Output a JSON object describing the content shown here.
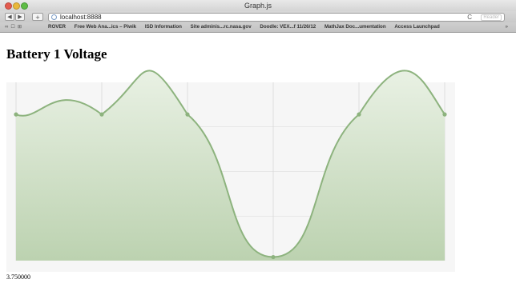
{
  "window": {
    "title": "Graph.js"
  },
  "toolbar": {
    "back_label": "◀",
    "forward_label": "▶",
    "add_label": "+",
    "url": "localhost:8888",
    "reload_label": "C",
    "reader_label": "Reader"
  },
  "bookmarks": {
    "items": [
      "ROVER",
      "Free Web Ana...ics – Piwik",
      "ISD Information",
      "Site adminis...rc.nasa.gov",
      "Doodle: VEX...f 11/26/12",
      "MathJax Doc...umentation",
      "Access Launchpad"
    ],
    "more_label": "»"
  },
  "page": {
    "heading": "Battery 1 Voltage",
    "readout": "3.750000"
  },
  "colors": {
    "line": "#8db37e",
    "fill_top": "#e9f1e4",
    "fill_bottom": "#bcd2b0",
    "grid": "#d8d8d8",
    "plot_bg": "#f6f6f6"
  },
  "chart_data": {
    "type": "area",
    "x": [
      0,
      1,
      2,
      3,
      4,
      5
    ],
    "values": [
      0.82,
      0.82,
      0.82,
      0.02,
      0.82,
      0.82
    ],
    "peaks_above_view": true,
    "ylim": [
      0,
      1.0
    ],
    "grid": true,
    "title": "",
    "xlabel": "",
    "ylabel": ""
  }
}
